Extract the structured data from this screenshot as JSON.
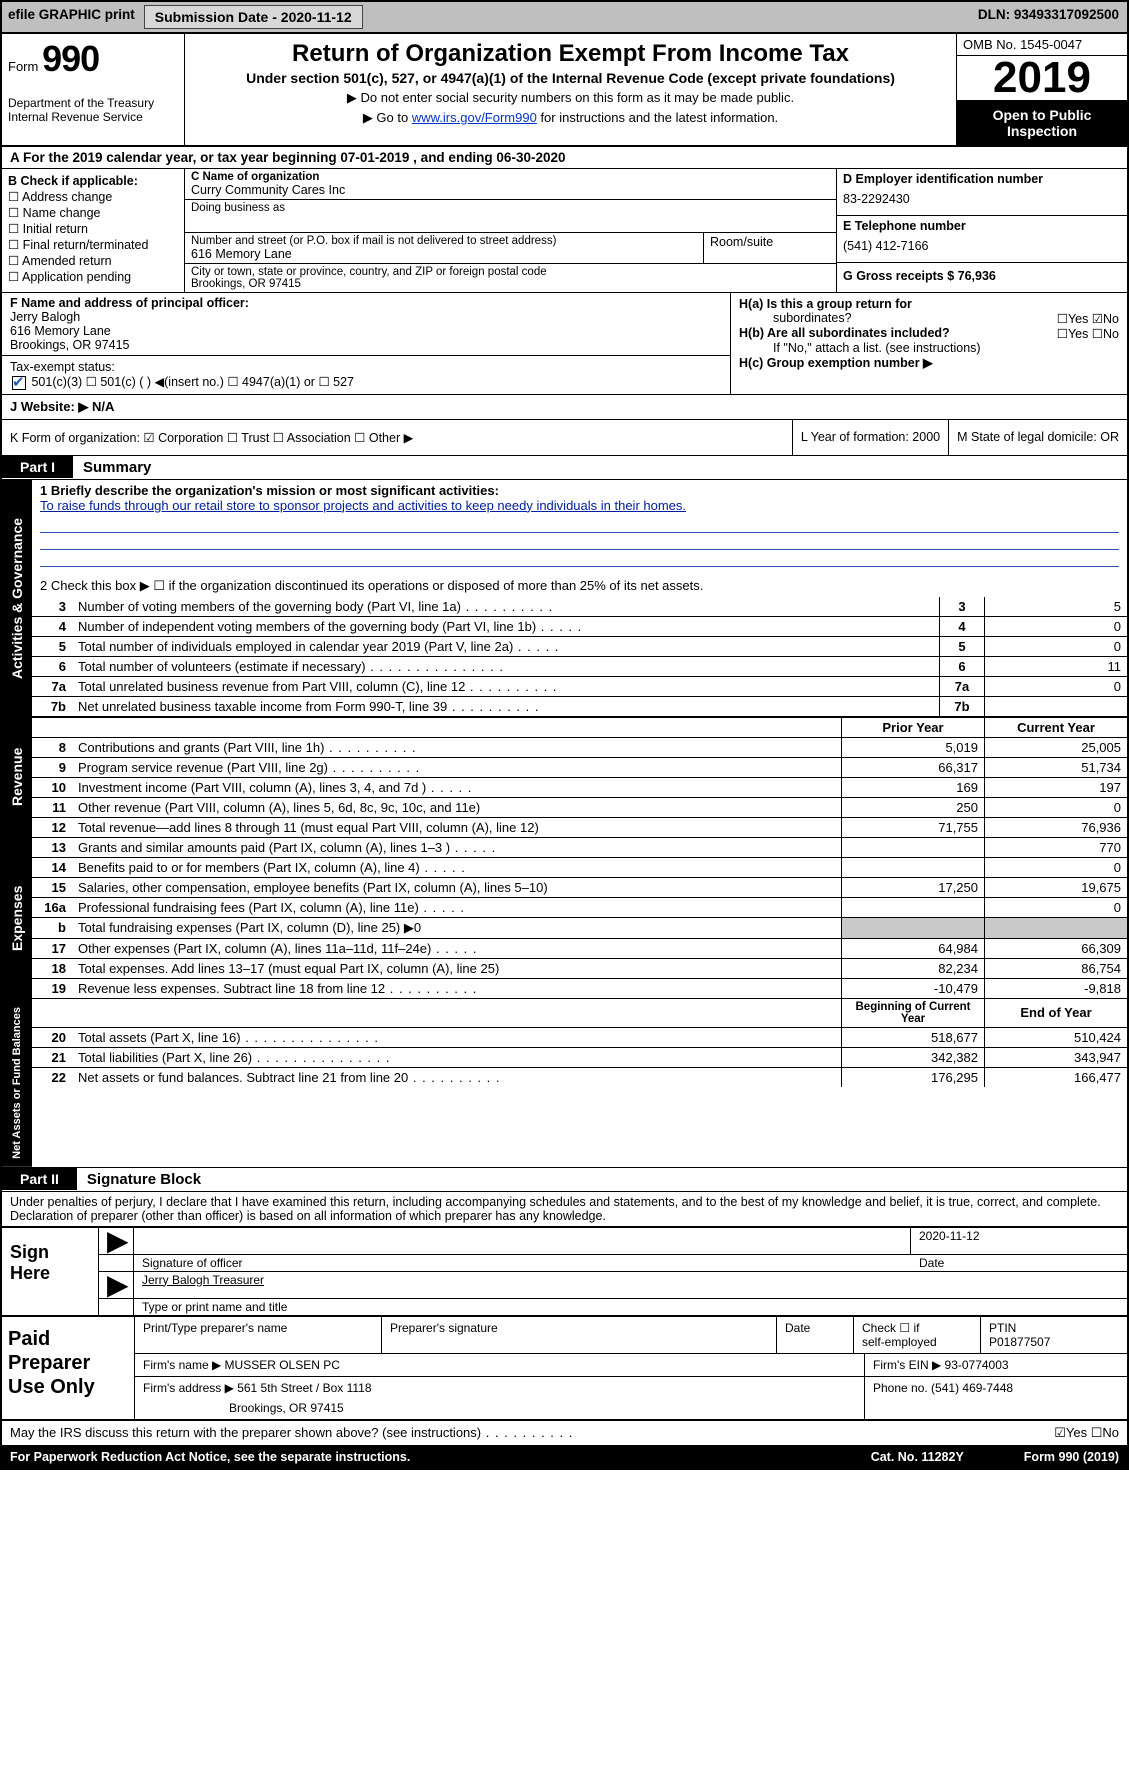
{
  "topbar": {
    "efile": "efile GRAPHIC print",
    "submission_label": "Submission Date - 2020-11-12",
    "dln": "DLN: 93493317092500"
  },
  "header": {
    "form_word": "Form",
    "form_num": "990",
    "title": "Return of Organization Exempt From Income Tax",
    "subtitle": "Under section 501(c), 527, or 4947(a)(1) of the Internal Revenue Code (except private foundations)",
    "note1": "▶ Do not enter social security numbers on this form as it may be made public.",
    "note2_pre": "▶ Go to ",
    "note2_link": "www.irs.gov/Form990",
    "note2_post": " for instructions and the latest information.",
    "dept1": "Department of the Treasury",
    "dept2": "Internal Revenue Service",
    "omb": "OMB No. 1545-0047",
    "year": "2019",
    "open1": "Open to Public",
    "open2": "Inspection"
  },
  "rowA": "A  For the 2019 calendar year, or tax year beginning 07-01-2019    , and ending 06-30-2020",
  "boxB": {
    "title": "B Check if applicable:",
    "items": [
      "☐ Address change",
      "☐ Name change",
      "☐ Initial return",
      "☐ Final return/terminated",
      "☐ Amended return",
      "☐ Application pending"
    ]
  },
  "boxC": {
    "name_label": "C Name of organization",
    "name_val": "Curry Community Cares Inc",
    "dba_label": "Doing business as",
    "addr_label": "Number and street (or P.O. box if mail is not delivered to street address)",
    "addr_val": "616 Memory Lane",
    "room_label": "Room/suite",
    "city_label": "City or town, state or province, country, and ZIP or foreign postal code",
    "city_val": "Brookings, OR  97415"
  },
  "boxD": {
    "d_label": "D Employer identification number",
    "d_val": "83-2292430",
    "e_label": "E Telephone number",
    "e_val": "(541) 412-7166",
    "g_label": "G Gross receipts $ 76,936"
  },
  "boxF": {
    "label": "F  Name and address of principal officer:",
    "name": "Jerry Balogh",
    "addr1": "616 Memory Lane",
    "addr2": "Brookings, OR  97415",
    "tax_label": "Tax-exempt status:",
    "tax_opts": "501(c)(3)       ☐  501(c) (  ) ◀(insert no.)       ☐  4947(a)(1) or   ☐  527"
  },
  "boxH": {
    "ha": "H(a)  Is this a group return for",
    "ha2": "subordinates?",
    "ha_yn": "☐Yes ☑No",
    "hb": "H(b)  Are all subordinates included?",
    "hb_yn": "☐Yes ☐No",
    "hb_note": "If \"No,\" attach a list. (see instructions)",
    "hc": "H(c)  Group exemption number ▶"
  },
  "rowJ": "J   Website: ▶   N/A",
  "rowK": {
    "k": "K Form of organization:  ☑ Corporation  ☐ Trust  ☐ Association  ☐ Other ▶",
    "l": "L Year of formation: 2000",
    "m": "M State of legal domicile: OR"
  },
  "part1": {
    "label": "Part I",
    "title": "Summary"
  },
  "gov": {
    "line1_label": "1  Briefly describe the organization's mission or most significant activities:",
    "line1_text": "To raise funds through our retail store to sponsor projects and activities to keep needy individuals in their homes.",
    "line2": "2   Check this box ▶ ☐  if the organization discontinued its operations or disposed of more than 25% of its net assets.",
    "rows": [
      {
        "n": "3",
        "label": "Number of voting members of the governing body (Part VI, line 1a)",
        "dot": "dotted",
        "v": "5"
      },
      {
        "n": "4",
        "label": "Number of independent voting members of the governing body (Part VI, line 1b)",
        "dot": "dotted-s",
        "v": "0"
      },
      {
        "n": "5",
        "label": "Total number of individuals employed in calendar year 2019 (Part V, line 2a)",
        "dot": "dotted-s",
        "v": "0"
      },
      {
        "n": "6",
        "label": "Total number of volunteers (estimate if necessary)",
        "dot": "dotted-l",
        "v": "11"
      },
      {
        "n": "7a",
        "label": "Total unrelated business revenue from Part VIII, column (C), line 12",
        "dot": "dotted",
        "v": "0"
      },
      {
        "n": "7b",
        "label": "Net unrelated business taxable income from Form 990-T, line 39",
        "dot": "dotted",
        "v": ""
      }
    ]
  },
  "rev": {
    "header_prior": "Prior Year",
    "header_curr": "Current Year",
    "rows": [
      {
        "n": "8",
        "label": "Contributions and grants (Part VIII, line 1h)",
        "dot": "dotted",
        "p": "5,019",
        "c": "25,005"
      },
      {
        "n": "9",
        "label": "Program service revenue (Part VIII, line 2g)",
        "dot": "dotted",
        "p": "66,317",
        "c": "51,734"
      },
      {
        "n": "10",
        "label": "Investment income (Part VIII, column (A), lines 3, 4, and 7d )",
        "dot": "dotted-s",
        "p": "169",
        "c": "197"
      },
      {
        "n": "11",
        "label": "Other revenue (Part VIII, column (A), lines 5, 6d, 8c, 9c, 10c, and 11e)",
        "dot": "",
        "p": "250",
        "c": "0"
      },
      {
        "n": "12",
        "label": "Total revenue—add lines 8 through 11 (must equal Part VIII, column (A), line 12)",
        "dot": "",
        "p": "71,755",
        "c": "76,936"
      }
    ]
  },
  "exp": {
    "rows": [
      {
        "n": "13",
        "label": "Grants and similar amounts paid (Part IX, column (A), lines 1–3 )",
        "dot": "dotted-s",
        "p": "",
        "c": "770"
      },
      {
        "n": "14",
        "label": "Benefits paid to or for members (Part IX, column (A), line 4)",
        "dot": "dotted-s",
        "p": "",
        "c": "0"
      },
      {
        "n": "15",
        "label": "Salaries, other compensation, employee benefits (Part IX, column (A), lines 5–10)",
        "dot": "",
        "p": "17,250",
        "c": "19,675"
      },
      {
        "n": "16a",
        "label": "Professional fundraising fees (Part IX, column (A), line 11e)",
        "dot": "dotted-s",
        "p": "",
        "c": "0"
      },
      {
        "n": "b",
        "label": "Total fundraising expenses (Part IX, column (D), line 25) ▶0",
        "dot": "",
        "p": "grey",
        "c": "grey"
      },
      {
        "n": "17",
        "label": "Other expenses (Part IX, column (A), lines 11a–11d, 11f–24e)",
        "dot": "dotted-s",
        "p": "64,984",
        "c": "66,309"
      },
      {
        "n": "18",
        "label": "Total expenses. Add lines 13–17 (must equal Part IX, column (A), line 25)",
        "dot": "",
        "p": "82,234",
        "c": "86,754"
      },
      {
        "n": "19",
        "label": "Revenue less expenses. Subtract line 18 from line 12",
        "dot": "dotted",
        "p": "-10,479",
        "c": "-9,818"
      }
    ]
  },
  "net": {
    "header_beg": "Beginning of Current Year",
    "header_end": "End of Year",
    "rows": [
      {
        "n": "20",
        "label": "Total assets (Part X, line 16)",
        "dot": "dotted-l",
        "p": "518,677",
        "c": "510,424"
      },
      {
        "n": "21",
        "label": "Total liabilities (Part X, line 26)",
        "dot": "dotted-l",
        "p": "342,382",
        "c": "343,947"
      },
      {
        "n": "22",
        "label": "Net assets or fund balances. Subtract line 21 from line 20",
        "dot": "dotted",
        "p": "176,295",
        "c": "166,477"
      }
    ]
  },
  "part2": {
    "label": "Part II",
    "title": "Signature Block"
  },
  "penalties": "Under penalties of perjury, I declare that I have examined this return, including accompanying schedules and statements, and to the best of my knowledge and belief, it is true, correct, and complete. Declaration of preparer (other than officer) is based on all information of which preparer has any knowledge.",
  "sign": {
    "label": "Sign Here",
    "sig_officer": "Signature of officer",
    "date_val": "2020-11-12",
    "date_label": "Date",
    "name_val": "Jerry Balogh Treasurer",
    "name_label": "Type or print name and title"
  },
  "paid": {
    "label": "Paid Preparer Use Only",
    "r1": {
      "c1": "Print/Type preparer's name",
      "c2": "Preparer's signature",
      "c3": "Date",
      "c4a": "Check ☐ if",
      "c4b": "self-employed",
      "c5a": "PTIN",
      "c5b": "P01877507"
    },
    "r2": {
      "c1": "Firm's name    ▶ MUSSER OLSEN PC",
      "c2": "Firm's EIN ▶ 93-0774003"
    },
    "r3": {
      "c1a": "Firm's address ▶ 561 5th Street / Box 1118",
      "c1b": "Brookings, OR  97415",
      "c2": "Phone no. (541) 469-7448"
    }
  },
  "discuss": {
    "text": "May the IRS discuss this return with the preparer shown above? (see instructions)",
    "yn": "☑Yes  ☐No"
  },
  "footer": {
    "left": "For Paperwork Reduction Act Notice, see the separate instructions.",
    "mid": "Cat. No. 11282Y",
    "right": "Form 990 (2019)"
  }
}
